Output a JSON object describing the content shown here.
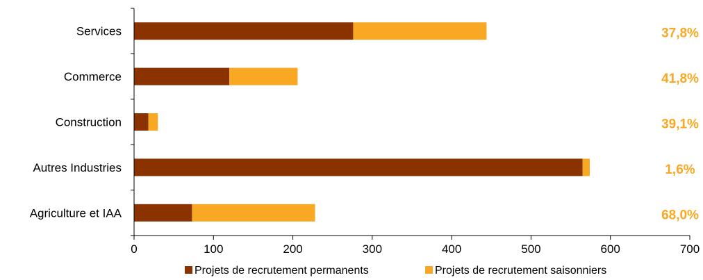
{
  "chart_data": {
    "type": "bar",
    "orientation": "horizontal",
    "stacked": true,
    "categories": [
      "Services",
      "Commerce",
      "Construction",
      "Autres Industries",
      "Agriculture et IAA"
    ],
    "series": [
      {
        "name": "Projets de recrutement permanents",
        "values": [
          276,
          120,
          18,
          565,
          73
        ],
        "color": "#8B3300"
      },
      {
        "name": "Projets de recrutement saisonniers",
        "values": [
          168,
          86,
          12,
          9,
          155
        ],
        "color": "#F9A823"
      }
    ],
    "annotations": [
      "37,8%",
      "41,8%",
      "39,1%",
      "1,6%",
      "68,0%"
    ],
    "annotation_color": "#F9A823",
    "xlim": [
      0,
      700
    ],
    "xticks": [
      0,
      100,
      200,
      300,
      400,
      500,
      600,
      700
    ],
    "grid": false,
    "legend_position": "bottom"
  }
}
